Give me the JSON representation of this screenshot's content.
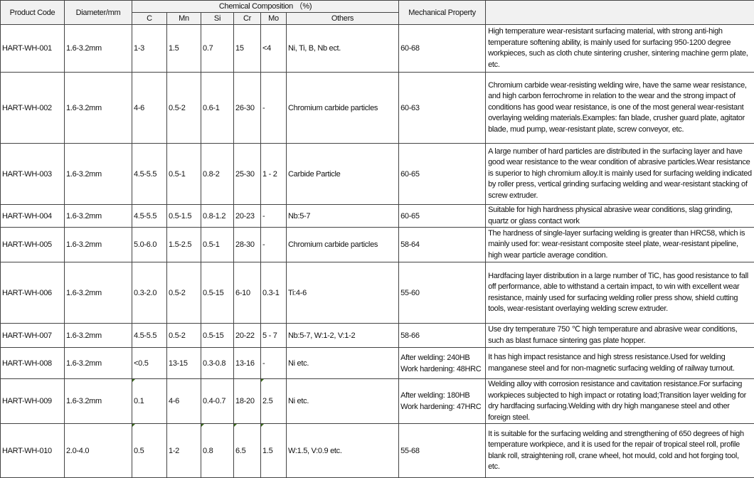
{
  "headers": {
    "product_code": "Product Code",
    "diameter": "Diameter/mm",
    "chemical": "Chemical Composition （%)",
    "mechanical": "Mechanical Property",
    "description": "",
    "sub": [
      "C",
      "Mn",
      "Si",
      "Cr",
      "Mo",
      "Others"
    ]
  },
  "rows": [
    {
      "code": "HART-WH-001",
      "diameter": "1.6-3.2mm",
      "c": "1-3",
      "mn": "1.5",
      "si": "0.7",
      "cr": "15",
      "mo": "<4",
      "others": "Ni, Ti, B, Nb ect.",
      "mech": "60-68",
      "desc": "High temperature wear-resistant surfacing material, with strong anti-high temperature softening ability, is mainly used for surfacing 950-1200 degree workpieces, such as cloth chute sintering crusher, sintering machine germ plate, etc."
    },
    {
      "code": "HART-WH-002",
      "diameter": "1.6-3.2mm",
      "c": "4-6",
      "mn": "0.5-2",
      "si": "0.6-1",
      "cr": "26-30",
      "mo": "-",
      "others": "Chromium carbide particles",
      "mech": "60-63",
      "desc": "Chromium carbide wear-resisting welding wire, have the same wear resistance, and high carbon ferrochrome in relation to the wear and the strong impact of conditions has good wear resistance, is one of the most general wear-resistant overlaying welding materials.Examples: fan blade, crusher guard plate, agitator blade, mud pump, wear-resistant plate, screw conveyor, etc."
    },
    {
      "code": "HART-WH-003",
      "diameter": "1.6-3.2mm",
      "c": "4.5-5.5",
      "mn": "0.5-1",
      "si": "0.8-2",
      "cr": "25-30",
      "mo": "1 - 2",
      "others": "Carbide Particle",
      "mech": "60-65",
      "desc": "A large number of hard particles are distributed in the surfacing layer and have good wear resistance to the wear condition of abrasive particles.Wear resistance is superior to high chromium alloy.It is mainly used for surfacing welding indicated by roller press, vertical grinding surfacing welding and wear-resistant stacking of screw extruder."
    },
    {
      "code": "HART-WH-004",
      "diameter": "1.6-3.2mm",
      "c": "4.5-5.5",
      "mn": "0.5-1.5",
      "si": "0.8-1.2",
      "cr": "20-23",
      "mo": "-",
      "others": "Nb:5-7",
      "mech": "60-65",
      "desc": "Suitable for high hardness physical abrasive wear conditions, slag grinding, quartz or glass contact work"
    },
    {
      "code": "HART-WH-005",
      "diameter": "1.6-3.2mm",
      "c": "5.0-6.0",
      "mn": "1.5-2.5",
      "si": "0.5-1",
      "cr": "28-30",
      "mo": "-",
      "others": "Chromium carbide particles",
      "mech": "58-64",
      "desc": "The hardness of single-layer surfacing welding is greater than HRC58, which is mainly used for: wear-resistant composite steel plate, wear-resistant pipeline, high wear particle average condition."
    },
    {
      "code": "HART-WH-006",
      "diameter": "1.6-3.2mm",
      "c": "0.3-2.0",
      "mn": "0.5-2",
      "si": "0.5-15",
      "cr": "6-10",
      "mo": "0.3-1",
      "others": "Ti:4-6",
      "mech": "55-60",
      "desc": "Hardfacing layer distribution in a large number of TiC, has good resistance to fall off performance, able to withstand a certain impact, to win with excellent wear resistance, mainly used for surfacing welding roller press show, shield cutting tools, wear-resistant overlaying welding screw extruder."
    },
    {
      "code": "HART-WH-007",
      "diameter": "1.6-3.2mm",
      "c": "4.5-5.5",
      "mn": "0.5-2",
      "si": "0.5-15",
      "cr": "20-22",
      "mo": "5 - 7",
      "others": "Nb:5-7, W:1-2, V:1-2",
      "mech": "58-66",
      "desc": "Use dry temperature 750 ℃ high temperature and abrasive wear conditions, such as blast furnace sintering gas plate hopper."
    },
    {
      "code": "HART-WH-008",
      "diameter": "1.6-3.2mm",
      "c": "<0.5",
      "mn": "13-15",
      "si": "0.3-0.8",
      "cr": "13-16",
      "mo": "-",
      "others": "Ni etc.",
      "mech": "After welding: 240HB Work hardening: 48HRC",
      "desc": "It has high impact resistance and high stress resistance.Used for welding manganese steel and for non-magnetic surfacing welding of railway turnout."
    },
    {
      "code": "HART-WH-009",
      "diameter": "1.6-3.2mm",
      "c": "0.1",
      "mn": "4-6",
      "si": "0.4-0.7",
      "cr": "18-20",
      "mo": "2.5",
      "others": "Ni etc.",
      "mech": "After welding: 180HB Work hardening: 47HRC",
      "desc": "Welding alloy with corrosion resistance and cavitation resistance.For surfacing workpieces subjected to high impact or rotating load;Transition layer welding for dry hardfacing surfacing.Welding with dry high manganese steel and other foreign steel."
    },
    {
      "code": "HART-WH-010",
      "diameter": "2.0-4.0",
      "c": "0.5",
      "mn": "1-2",
      "si": "0.8",
      "cr": "6.5",
      "mo": "1.5",
      "others": "W:1.5, V:0.9 etc.",
      "mech": "55-68",
      "desc": "It is suitable for the surfacing welding and strengthening of 650 degrees of high temperature workpiece, and it is used for the repair of tropical steel roll, profile blank roll, straightening roll, crane wheel, hot mould, cold and hot forging tool, etc."
    }
  ]
}
